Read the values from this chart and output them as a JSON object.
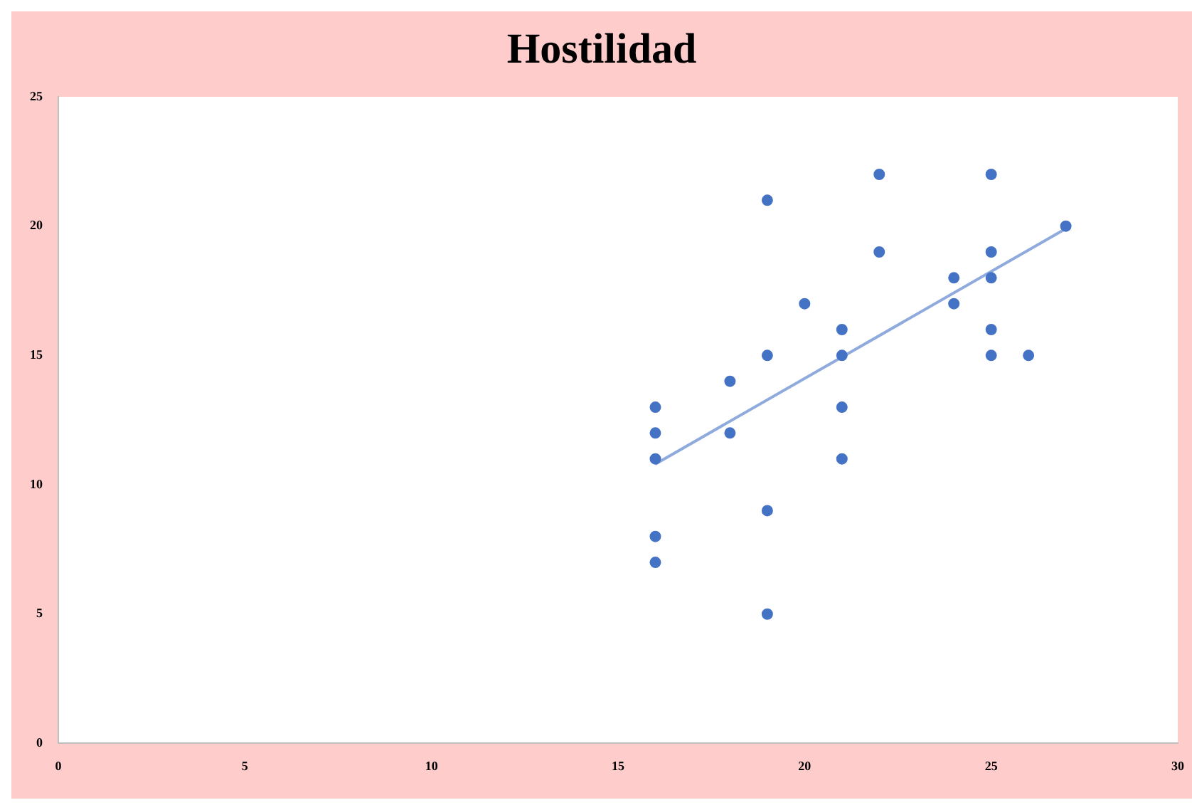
{
  "chart_data": {
    "type": "scatter",
    "title": "Hostilidad",
    "xlim": [
      0,
      30
    ],
    "xticks": [
      0,
      5,
      10,
      15,
      20,
      25,
      30
    ],
    "ylim": [
      0,
      25
    ],
    "yticks": [
      0,
      5,
      10,
      15,
      20,
      25
    ],
    "grid": false,
    "legend": false,
    "marker": "circle",
    "series": [
      {
        "color": "#4472c4",
        "x": [
          16,
          16,
          16,
          16,
          16,
          18,
          18,
          19,
          19,
          19,
          19,
          20,
          21,
          21,
          21,
          21,
          22,
          22,
          24,
          24,
          25,
          25,
          25,
          25,
          25,
          26,
          27
        ],
        "values": [
          13,
          12,
          11,
          8,
          7,
          14,
          12,
          21,
          15,
          9,
          5,
          17,
          16,
          15,
          13,
          11,
          22,
          19,
          18,
          17,
          22,
          19,
          18,
          16,
          15,
          15,
          20
        ]
      },
      {
        "type": "line",
        "color": "#8faadc",
        "x": [
          16,
          27
        ],
        "values": [
          10.8,
          19.9
        ],
        "marker": "none"
      }
    ]
  }
}
